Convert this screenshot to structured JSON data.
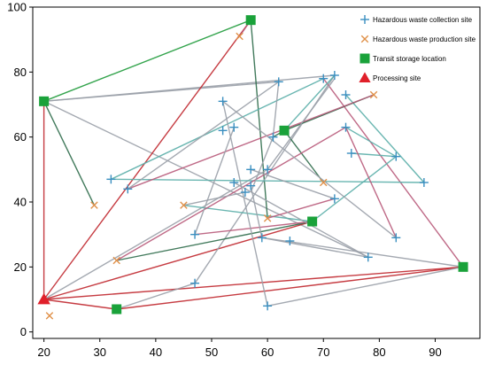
{
  "chart_data": {
    "type": "scatter",
    "title": "",
    "xlabel": "",
    "ylabel": "",
    "xlim": [
      18,
      98
    ],
    "ylim": [
      -2,
      100
    ],
    "x_ticks": [
      20,
      30,
      40,
      50,
      60,
      70,
      80,
      90
    ],
    "y_ticks": [
      0,
      20,
      40,
      60,
      80,
      100
    ],
    "grid": false,
    "legend_position": "top-right",
    "series": [
      {
        "name": "Hazardous waste collection site",
        "marker": "plus",
        "color": "#3a8fc0",
        "points": [
          [
            32,
            47
          ],
          [
            35,
            44
          ],
          [
            47,
            30
          ],
          [
            47,
            15
          ],
          [
            52,
            71
          ],
          [
            52,
            62
          ],
          [
            54,
            63
          ],
          [
            54,
            46
          ],
          [
            56,
            43
          ],
          [
            57,
            45
          ],
          [
            57,
            50
          ],
          [
            59,
            29
          ],
          [
            60,
            50
          ],
          [
            60,
            8
          ],
          [
            61,
            60
          ],
          [
            62,
            77
          ],
          [
            64,
            28
          ],
          [
            70,
            78
          ],
          [
            72,
            79
          ],
          [
            72,
            41
          ],
          [
            74,
            73
          ],
          [
            74,
            63
          ],
          [
            75,
            55
          ],
          [
            78,
            23
          ],
          [
            83,
            54
          ],
          [
            83,
            29
          ],
          [
            88,
            46
          ]
        ]
      },
      {
        "name": "Hazardous waste production site",
        "marker": "cross",
        "color": "#e0914a",
        "points": [
          [
            21,
            5
          ],
          [
            29,
            39
          ],
          [
            33,
            22
          ],
          [
            45,
            39
          ],
          [
            55,
            91
          ],
          [
            60,
            35
          ],
          [
            70,
            46
          ],
          [
            79,
            73
          ]
        ]
      },
      {
        "name": "Transit storage location",
        "marker": "square",
        "color": "#1aa23a",
        "points": [
          [
            20,
            71
          ],
          [
            33,
            7
          ],
          [
            57,
            96
          ],
          [
            63,
            62
          ],
          [
            68,
            34
          ],
          [
            95,
            20
          ]
        ]
      },
      {
        "name": "Processing site",
        "marker": "triangle",
        "color": "#e0202a",
        "points": [
          [
            20,
            10
          ]
        ]
      }
    ],
    "routes": [
      {
        "color": "#1e9a3a",
        "points": [
          [
            20,
            71
          ],
          [
            57,
            96
          ]
        ]
      },
      {
        "color": "#2e6b4a",
        "points": [
          [
            20,
            71
          ],
          [
            29,
            39
          ]
        ]
      },
      {
        "color": "#9aa0a8",
        "points": [
          [
            20,
            71
          ],
          [
            72,
            79
          ]
        ]
      },
      {
        "color": "#9aa0a8",
        "points": [
          [
            20,
            71
          ],
          [
            62,
            77
          ]
        ]
      },
      {
        "color": "#9aa0a8",
        "points": [
          [
            20,
            71
          ],
          [
            78,
            23
          ]
        ]
      },
      {
        "color": "#c0272d",
        "points": [
          [
            20,
            71
          ],
          [
            20,
            10
          ]
        ]
      },
      {
        "color": "#c0272d",
        "points": [
          [
            20,
            10
          ],
          [
            57,
            96
          ]
        ]
      },
      {
        "color": "#b85a7a",
        "points": [
          [
            57,
            96
          ],
          [
            55,
            91
          ]
        ]
      },
      {
        "color": "#2e6b4a",
        "points": [
          [
            57,
            96
          ],
          [
            60,
            35
          ]
        ]
      },
      {
        "color": "#c0272d",
        "points": [
          [
            20,
            10
          ],
          [
            33,
            7
          ]
        ]
      },
      {
        "color": "#c0272d",
        "points": [
          [
            20,
            10
          ],
          [
            68,
            34
          ]
        ]
      },
      {
        "color": "#c0272d",
        "points": [
          [
            20,
            10
          ],
          [
            95,
            20
          ]
        ]
      },
      {
        "color": "#c0272d",
        "points": [
          [
            33,
            7
          ],
          [
            95,
            20
          ]
        ]
      },
      {
        "color": "#9aa0a8",
        "points": [
          [
            20,
            10
          ],
          [
            60,
            50
          ]
        ]
      },
      {
        "color": "#9aa0a8",
        "points": [
          [
            33,
            7
          ],
          [
            47,
            15
          ]
        ]
      },
      {
        "color": "#9aa0a8",
        "points": [
          [
            47,
            15
          ],
          [
            72,
            79
          ]
        ]
      },
      {
        "color": "#9aa0a8",
        "points": [
          [
            95,
            20
          ],
          [
            60,
            8
          ]
        ]
      },
      {
        "color": "#9aa0a8",
        "points": [
          [
            95,
            20
          ],
          [
            59,
            29
          ]
        ]
      },
      {
        "color": "#b85a7a",
        "points": [
          [
            95,
            20
          ],
          [
            70,
            78
          ]
        ]
      },
      {
        "color": "#5aaea8",
        "points": [
          [
            32,
            47
          ],
          [
            70,
            78
          ]
        ]
      },
      {
        "color": "#5aaea8",
        "points": [
          [
            32,
            47
          ],
          [
            88,
            46
          ]
        ]
      },
      {
        "color": "#5aaea8",
        "points": [
          [
            88,
            46
          ],
          [
            74,
            73
          ]
        ]
      },
      {
        "color": "#5aaea8",
        "points": [
          [
            83,
            54
          ],
          [
            74,
            63
          ]
        ]
      },
      {
        "color": "#5aaea8",
        "points": [
          [
            83,
            54
          ],
          [
            75,
            55
          ]
        ]
      },
      {
        "color": "#5aaea8",
        "points": [
          [
            68,
            34
          ],
          [
            45,
            39
          ]
        ]
      },
      {
        "color": "#5aaea8",
        "points": [
          [
            68,
            34
          ],
          [
            83,
            54
          ]
        ]
      },
      {
        "color": "#5aaea8",
        "points": [
          [
            63,
            62
          ],
          [
            72,
            79
          ]
        ]
      },
      {
        "color": "#2e6b4a",
        "points": [
          [
            63,
            62
          ],
          [
            79,
            73
          ]
        ]
      },
      {
        "color": "#2e6b4a",
        "points": [
          [
            63,
            62
          ],
          [
            70,
            46
          ]
        ]
      },
      {
        "color": "#2e6b4a",
        "points": [
          [
            63,
            62
          ],
          [
            61,
            60
          ]
        ]
      },
      {
        "color": "#2e6b4a",
        "points": [
          [
            68,
            34
          ],
          [
            33,
            22
          ]
        ]
      },
      {
        "color": "#b85a7a",
        "points": [
          [
            33,
            22
          ],
          [
            74,
            63
          ]
        ]
      },
      {
        "color": "#b85a7a",
        "points": [
          [
            35,
            44
          ],
          [
            79,
            73
          ]
        ]
      },
      {
        "color": "#b85a7a",
        "points": [
          [
            74,
            63
          ],
          [
            83,
            29
          ]
        ]
      },
      {
        "color": "#b85a7a",
        "points": [
          [
            60,
            35
          ],
          [
            72,
            41
          ]
        ]
      },
      {
        "color": "#b85a7a",
        "points": [
          [
            47,
            30
          ],
          [
            68,
            34
          ]
        ]
      },
      {
        "color": "#9aa0a8",
        "points": [
          [
            35,
            44
          ],
          [
            62,
            77
          ]
        ]
      },
      {
        "color": "#9aa0a8",
        "points": [
          [
            47,
            30
          ],
          [
            54,
            63
          ]
        ]
      },
      {
        "color": "#9aa0a8",
        "points": [
          [
            52,
            71
          ],
          [
            60,
            8
          ]
        ]
      },
      {
        "color": "#9aa0a8",
        "points": [
          [
            52,
            71
          ],
          [
            83,
            29
          ]
        ]
      },
      {
        "color": "#9aa0a8",
        "points": [
          [
            54,
            46
          ],
          [
            78,
            23
          ]
        ]
      },
      {
        "color": "#9aa0a8",
        "points": [
          [
            57,
            45
          ],
          [
            59,
            29
          ]
        ]
      },
      {
        "color": "#9aa0a8",
        "points": [
          [
            57,
            43
          ],
          [
            61,
            60
          ]
        ]
      },
      {
        "color": "#9aa0a8",
        "points": [
          [
            59,
            29
          ],
          [
            78,
            23
          ]
        ]
      },
      {
        "color": "#9aa0a8",
        "points": [
          [
            45,
            39
          ],
          [
            56,
            43
          ]
        ]
      },
      {
        "color": "#9aa0a8",
        "points": [
          [
            57,
            50
          ],
          [
            72,
            41
          ]
        ]
      },
      {
        "color": "#9aa0a8",
        "points": [
          [
            60,
            50
          ],
          [
            72,
            78
          ]
        ]
      },
      {
        "color": "#9aa0a8",
        "points": [
          [
            61,
            60
          ],
          [
            62,
            77
          ]
        ]
      }
    ]
  }
}
